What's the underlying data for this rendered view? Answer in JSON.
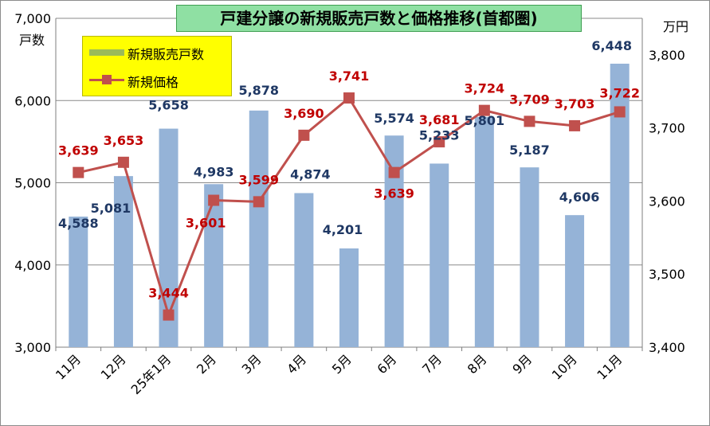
{
  "chart_data": {
    "type": "bar+line",
    "title": "戸建分譲の新規販売戸数と価格推移(首都圏)",
    "categories": [
      "11月",
      "12月",
      "25年1月",
      "2月",
      "3月",
      "4月",
      "5月",
      "6月",
      "7月",
      "8月",
      "9月",
      "10月",
      "11月"
    ],
    "series": [
      {
        "name": "新規販売戸数",
        "type": "bar",
        "axis": "left",
        "values": [
          4588,
          5081,
          5658,
          4983,
          5878,
          4874,
          4201,
          5574,
          5233,
          5801,
          5187,
          4606,
          6448
        ],
        "labels": [
          "4,588",
          "5,081",
          "5,658",
          "4,983",
          "5,878",
          "4,874",
          "4,201",
          "5,574",
          "5,233",
          "5,801",
          "5,187",
          "4,606",
          "6,448"
        ]
      },
      {
        "name": "新規価格",
        "type": "line",
        "axis": "right",
        "values": [
          3639,
          3653,
          3444,
          3601,
          3599,
          3690,
          3741,
          3639,
          3681,
          3724,
          3709,
          3703,
          3722
        ],
        "labels": [
          "3,639",
          "3,653",
          "3,444",
          "3,601",
          "3,599",
          "3,690",
          "3,741",
          "3,639",
          "3,681",
          "3,724",
          "3,709",
          "3,703",
          "3,722"
        ]
      }
    ],
    "y_left": {
      "unit": "戸数",
      "ylim": [
        3000,
        7000
      ],
      "ticks": [
        3000,
        4000,
        5000,
        6000,
        7000
      ],
      "tick_labels": [
        "3,000",
        "4,000",
        "5,000",
        "6,000",
        "7,000"
      ]
    },
    "y_right": {
      "unit": "万円",
      "ylim": [
        3400,
        3850
      ],
      "ticks": [
        3400,
        3500,
        3600,
        3700,
        3800
      ],
      "tick_labels": [
        "3,400",
        "3,500",
        "3,600",
        "3,700",
        "3,800"
      ]
    },
    "grid": "horizontal",
    "legend_position": "top-left",
    "colors": {
      "bars": "#95b3d7",
      "legend_bar_swatch": "#9bbb59",
      "line": "#c0504d",
      "bar_labels": "#1f3864",
      "line_labels": "#c00000",
      "title_background": "#8fe0a3",
      "legend_background": "#ffff00"
    }
  }
}
